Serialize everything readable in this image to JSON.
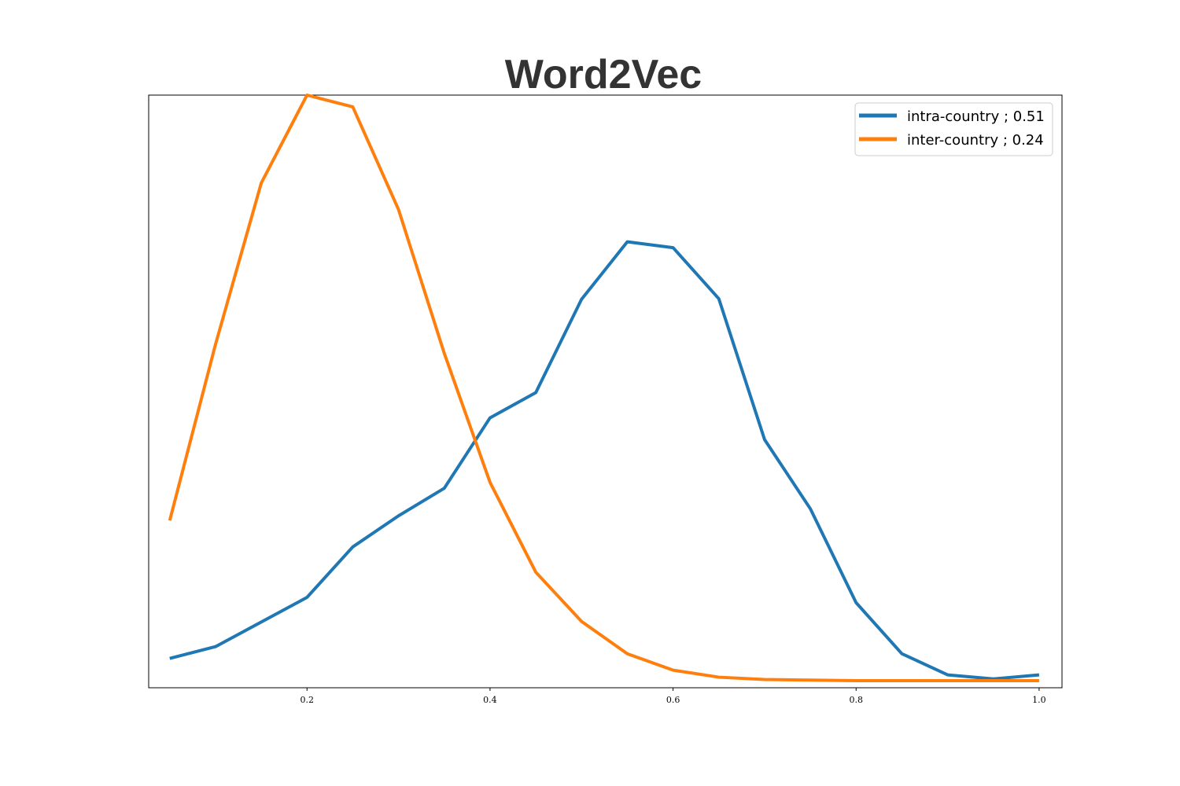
{
  "chart_data": {
    "type": "line",
    "title": "Word2Vec",
    "xlabel": "",
    "ylabel": "",
    "xlim": [
      0.027,
      1.025
    ],
    "ylim": [
      -0.01,
      1.0
    ],
    "x_ticks": [
      0.2,
      0.4,
      0.6,
      0.8,
      1.0
    ],
    "x_tick_labels": [
      "0.2",
      "0.4",
      "0.6",
      "0.8",
      "1.0"
    ],
    "y_ticks_visible": false,
    "grid": false,
    "legend_position": "top-right",
    "x": [
      0.05,
      0.1,
      0.15,
      0.2,
      0.25,
      0.3,
      0.35,
      0.4,
      0.45,
      0.5,
      0.55,
      0.6,
      0.65,
      0.7,
      0.75,
      0.8,
      0.85,
      0.9,
      0.95,
      1.0
    ],
    "series": [
      {
        "name": "intra-country ; 0.51",
        "color": "#1f77b4",
        "values": [
          0.04,
          0.06,
          0.102,
          0.144,
          0.23,
          0.283,
          0.33,
          0.45,
          0.493,
          0.652,
          0.75,
          0.74,
          0.653,
          0.413,
          0.295,
          0.135,
          0.048,
          0.012,
          0.005,
          0.012
        ]
      },
      {
        "name": "inter-country ; 0.24",
        "color": "#ff7f0e",
        "values": [
          0.275,
          0.575,
          0.85,
          1.0,
          0.98,
          0.805,
          0.56,
          0.34,
          0.187,
          0.103,
          0.048,
          0.02,
          0.008,
          0.004,
          0.003,
          0.002,
          0.002,
          0.002,
          0.002,
          0.002
        ]
      }
    ]
  }
}
